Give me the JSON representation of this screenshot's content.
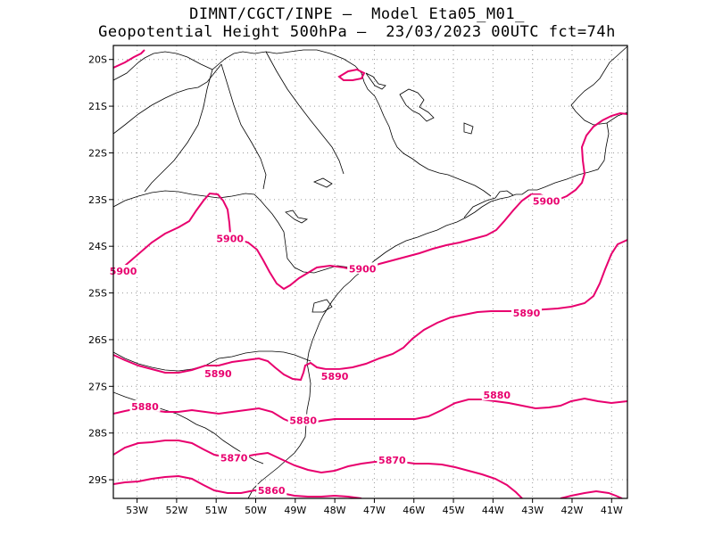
{
  "header": {
    "line1": "DIMNT/CGCT/INPE —  Model Eta05_M01_",
    "line2": "Geopotential Height 500hPa —  23/03/2023 00UTC fct=74h"
  },
  "map": {
    "lon_range": [
      -53.6,
      -40.6
    ],
    "lat_range": [
      -29.4,
      -19.7
    ],
    "lon_ticks": [
      -53,
      -52,
      -51,
      -50,
      -49,
      -48,
      -47,
      -46,
      -45,
      -44,
      -43,
      -42,
      -41
    ],
    "lon_labels": [
      "53W",
      "52W",
      "51W",
      "50W",
      "49W",
      "48W",
      "47W",
      "46W",
      "45W",
      "44W",
      "43W",
      "42W",
      "41W"
    ],
    "lat_ticks": [
      -20,
      -21,
      -22,
      -23,
      -24,
      -25,
      -26,
      -27,
      -28,
      -29
    ],
    "lat_labels": [
      "20S",
      "21S",
      "22S",
      "23S",
      "24S",
      "25S",
      "26S",
      "27S",
      "28S",
      "29S"
    ],
    "grid": "dotted",
    "contour_color": "#e8006e",
    "border_color": "#000000"
  },
  "contour_labels": [
    {
      "text": "5900",
      "lon": -53.35,
      "lat": -24.55
    },
    {
      "text": "5900",
      "lon": -50.65,
      "lat": -23.85
    },
    {
      "text": "5900",
      "lon": -47.3,
      "lat": -24.5
    },
    {
      "text": "5900",
      "lon": -42.65,
      "lat": -23.05
    },
    {
      "text": "5890",
      "lon": -43.15,
      "lat": -25.45
    },
    {
      "text": "5890",
      "lon": -50.95,
      "lat": -26.75
    },
    {
      "text": "5890",
      "lon": -48.0,
      "lat": -26.8
    },
    {
      "text": "5880",
      "lon": -52.8,
      "lat": -27.45
    },
    {
      "text": "5880",
      "lon": -43.9,
      "lat": -27.2
    },
    {
      "text": "5880",
      "lon": -48.8,
      "lat": -27.75
    },
    {
      "text": "5870",
      "lon": -50.55,
      "lat": -28.55
    },
    {
      "text": "5870",
      "lon": -46.55,
      "lat": -28.6
    },
    {
      "text": "5860",
      "lon": -49.6,
      "lat": -29.25
    }
  ]
}
